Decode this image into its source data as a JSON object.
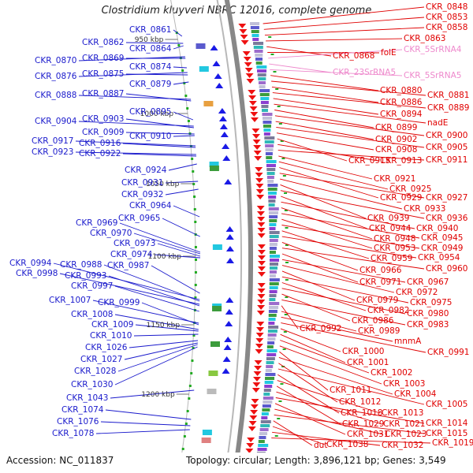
{
  "title": "Clostridium kluyveri NBRC 12016, complete genome",
  "footer": {
    "accession": "Accession: NC_011837",
    "topology": "Topology: circular; Length: 3,896,121 bp; Genes: 3,549"
  },
  "colors": {
    "left_label": "#1a1acc",
    "right_label": "#e00000",
    "rna_label": "#ee88cc",
    "arc": "#888888",
    "arc_light": "#b8b8b8",
    "forward_gene": "#1a1ae6",
    "reverse_gene": "#ee1111",
    "tick": "#22aa22"
  },
  "scale_labels": [
    "950 kbp",
    "1000 kbp",
    "1050 kbp",
    "1100 kbp",
    "1150 kbp",
    "1200 kbp"
  ],
  "left_genes": [
    "CKR_0861",
    "CKR_0862",
    "CKR_0864",
    "CKR_0870",
    "CKR_0869",
    "CKR_0874",
    "CKR_0876",
    "CKR_0875",
    "CKR_0879",
    "CKR_0888",
    "CKR_0887",
    "CKR_0895",
    "CKR_0904",
    "CKR_0903",
    "CKR_0909",
    "CKR_0910",
    "CKR_0917",
    "CKR_0916",
    "CKR_0923",
    "CKR_0922",
    "CKR_0924",
    "CKR_0931",
    "CKR_0932",
    "CKR_0964",
    "CKR_0965",
    "CKR_0969",
    "CKR_0970",
    "CKR_0973",
    "CKR_0974",
    "CKR_0994",
    "CKR_0988",
    "CKR_0987",
    "CKR_0998",
    "CKR_0993",
    "CKR_0997",
    "CKR_1007",
    "CKR_0999",
    "CKR_1008",
    "CKR_1009",
    "CKR_1010",
    "CKR_1026",
    "CKR_1027",
    "CKR_1028",
    "CKR_1030",
    "CKR_1043",
    "CKR_1074",
    "CKR_1076",
    "CKR_1078"
  ],
  "right_genes": [
    "CKR_0848",
    "CKR_0853",
    "CKR_0858",
    "CKR_0863",
    "CKR_0868",
    "folE",
    "CKR_5SrRNA4",
    "CKR_23SrRNA5",
    "CKR_5SrRNA5",
    "CKR_0880",
    "CKR_0881",
    "CKR_0886",
    "CKR_0889",
    "CKR_0894",
    "nadE",
    "CKR_0899",
    "CKR_0900",
    "CKR_0902",
    "CKR_0905",
    "CKR_0908",
    "CKR_0915",
    "CKR_0913",
    "CKR_0911",
    "CKR_0921",
    "CKR_0925",
    "CKR_0929",
    "CKR_0927",
    "CKR_0933",
    "CKR_0939",
    "CKR_0936",
    "CKR_0944",
    "CKR_0940",
    "CKR_0948",
    "CKR_0945",
    "CKR_0953",
    "CKR_0949",
    "CKR_0959",
    "CKR_0954",
    "CKR_0966",
    "CKR_0960",
    "CKR_0971",
    "CKR_0967",
    "CKR_0972",
    "CKR_0979",
    "CKR_0975",
    "CKR_0982",
    "CKR_0980",
    "CKR_0986",
    "CKR_0983",
    "CKR_0992",
    "CKR_0989",
    "mnmA",
    "CKR_0991",
    "CKR_1000",
    "CKR_1001",
    "CKR_1002",
    "CKR_1003",
    "CKR_1011",
    "CKR_1004",
    "CKR_1012",
    "CKR_1005",
    "CKR_1018",
    "CKR_1013",
    "CKR_1029",
    "CKR_1021",
    "CKR_1014",
    "CKR_1031",
    "CKR_1023",
    "CKR_1015",
    "dut",
    "CKR_1038",
    "CKR_1032",
    "CKR_1019"
  ]
}
